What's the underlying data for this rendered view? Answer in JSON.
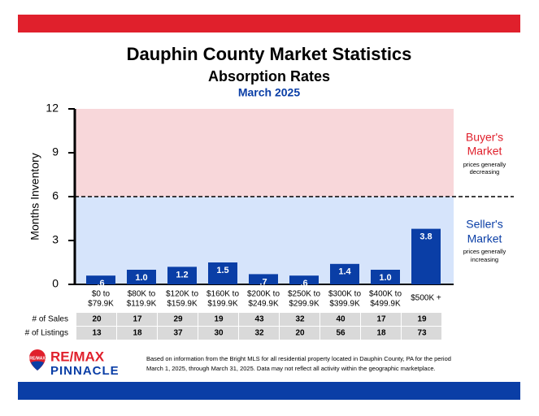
{
  "chart_data": {
    "type": "bar",
    "title": "Dauphin County Market Statistics",
    "subtitle": "Absorption Rates",
    "date": "March 2025",
    "y_label": "Months Inventory",
    "categories": [
      [
        "$0 to",
        "$79.9K"
      ],
      [
        "$80K to",
        "$119.9K"
      ],
      [
        "$120K to",
        "$159.9K"
      ],
      [
        "$160K to",
        "$199.9K"
      ],
      [
        "$200K to",
        "$249.9K"
      ],
      [
        "$250K to",
        "$299.9K"
      ],
      [
        "$300K to",
        "$399.9K"
      ],
      [
        "$400K to",
        "$499.9K"
      ],
      [
        "$500K +"
      ]
    ],
    "values": [
      0.6,
      1.0,
      1.2,
      1.5,
      0.7,
      0.6,
      1.4,
      1.0,
      3.8
    ],
    "value_labels": [
      ".6",
      "1.0",
      "1.2",
      "1.5",
      ".7",
      ".6",
      "1.4",
      "1.0",
      "3.8"
    ],
    "color": "#0a3ea6",
    "ylim": [
      0,
      12
    ],
    "yticks": [
      0,
      3,
      6,
      9,
      12
    ],
    "threshold": 6,
    "regions": [
      {
        "name": [
          "Buyer's",
          "Market"
        ],
        "note": [
          "prices generally",
          "decreasing"
        ],
        "color": "#f8d7da",
        "text_color": "#e0202c"
      },
      {
        "name": [
          "Seller's",
          "Market"
        ],
        "note": [
          "prices generally",
          "increasing"
        ],
        "color": "#d6e4fb",
        "text_color": "#0a3ea6"
      }
    ],
    "table": [
      {
        "label": "# of Sales",
        "values": [
          20,
          17,
          29,
          19,
          43,
          32,
          40,
          17,
          19
        ]
      },
      {
        "label": "# of Listings",
        "values": [
          13,
          18,
          37,
          30,
          32,
          20,
          56,
          18,
          73
        ]
      }
    ]
  },
  "footer": {
    "logo_top": "RE/MAX",
    "logo_bottom": "PINNACLE",
    "badge": "RE/MAX",
    "note": [
      "Based on information from the Bright MLS for all residential property located in Dauphin County, PA for the period",
      "March 1, 2025, through March 31, 2025.  Data may not reflect all activity within the geographic marketplace."
    ]
  }
}
